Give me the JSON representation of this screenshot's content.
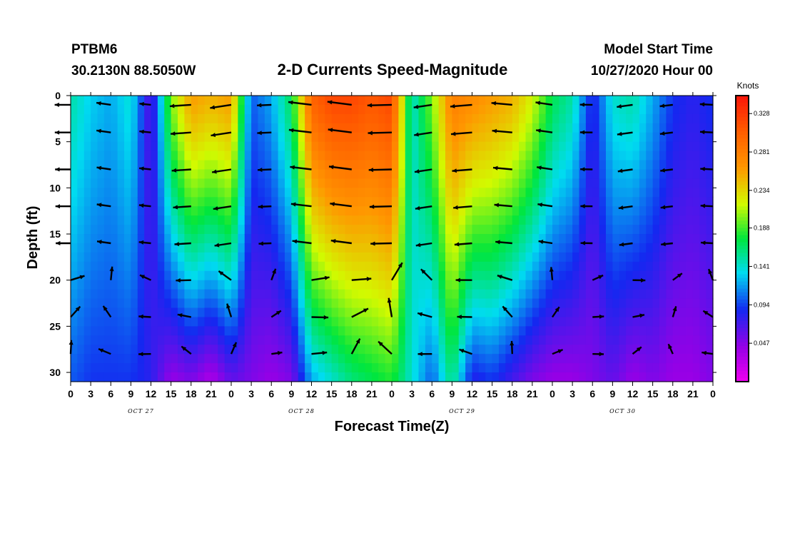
{
  "header": {
    "station": "PTBM6",
    "location": "30.2130N 88.5050W",
    "title": "2-D Currents Speed-Magnitude",
    "start_label": "Model Start Time",
    "start_value": "10/27/2020 Hour 00"
  },
  "chart_data": {
    "type": "heatmap",
    "title": "2-D Currents Speed-Magnitude",
    "xlabel": "Forecast Time(Z)",
    "ylabel": "Depth (ft)",
    "x_tick_labels": [
      "0",
      "3",
      "6",
      "9",
      "12",
      "15",
      "18",
      "21",
      "0",
      "3",
      "6",
      "9",
      "12",
      "15",
      "18",
      "21",
      "0",
      "3",
      "6",
      "9",
      "12",
      "15",
      "18",
      "21",
      "0",
      "3",
      "6",
      "9",
      "12",
      "15",
      "18",
      "21",
      "0"
    ],
    "x_range_hours": [
      0,
      96
    ],
    "date_labels": [
      {
        "text": "OCT 27",
        "hour": 10.5
      },
      {
        "text": "OCT 28",
        "hour": 34.5
      },
      {
        "text": "OCT 29",
        "hour": 58.5
      },
      {
        "text": "OCT 30",
        "hour": 82.5
      }
    ],
    "y_ticks": [
      0,
      5,
      10,
      15,
      20,
      25,
      30
    ],
    "y_range_ft": [
      0,
      31
    ],
    "y_inverted": true,
    "colorbar": {
      "unit": "Knots",
      "min": 0.0,
      "max": 0.35,
      "ticks": [
        "0.328",
        "0.281",
        "0.234",
        "0.188",
        "0.141",
        "0.094",
        "0.047"
      ]
    },
    "speed_profile_knots": {
      "hours": [
        0,
        3,
        6,
        9,
        12,
        15,
        18,
        21,
        24,
        27,
        30,
        33,
        36,
        39,
        42,
        45,
        48,
        51,
        54,
        57,
        60,
        63,
        66,
        69,
        72,
        75,
        78,
        81,
        84,
        87,
        90,
        93,
        96
      ],
      "surface": [
        0.15,
        0.13,
        0.12,
        0.14,
        0.06,
        0.2,
        0.26,
        0.25,
        0.26,
        0.1,
        0.12,
        0.17,
        0.3,
        0.32,
        0.32,
        0.31,
        0.32,
        0.14,
        0.2,
        0.28,
        0.27,
        0.26,
        0.25,
        0.22,
        0.17,
        0.15,
        0.08,
        0.14,
        0.15,
        0.12,
        0.09,
        0.08,
        0.09
      ],
      "bottom": [
        0.1,
        0.09,
        0.09,
        0.09,
        0.08,
        0.04,
        0.05,
        0.03,
        0.06,
        0.05,
        0.04,
        0.05,
        0.12,
        0.14,
        0.16,
        0.17,
        0.18,
        0.14,
        0.1,
        0.16,
        0.08,
        0.09,
        0.07,
        0.05,
        0.04,
        0.04,
        0.05,
        0.06,
        0.04,
        0.05,
        0.04,
        0.04,
        0.05
      ]
    },
    "vector_depths_ft": [
      1,
      4,
      8,
      12,
      16,
      20,
      24,
      28
    ],
    "vector_hours": [
      0,
      6,
      12,
      18,
      24,
      30,
      36,
      42,
      48,
      54,
      60,
      66,
      72,
      78,
      84,
      90,
      96
    ]
  }
}
